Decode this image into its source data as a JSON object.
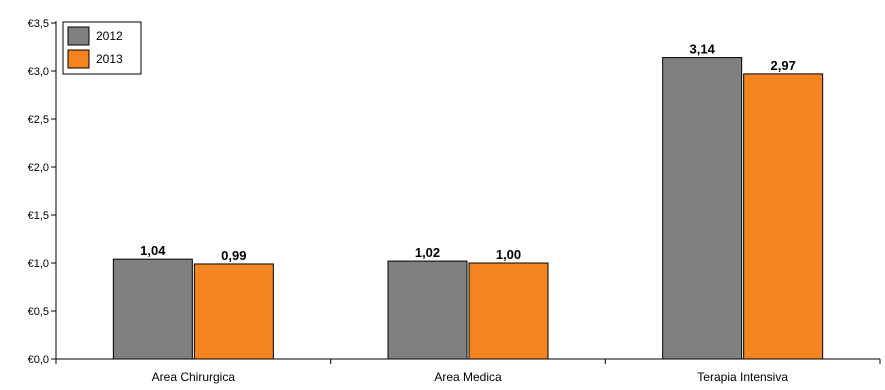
{
  "chart_data": {
    "type": "bar",
    "categories": [
      "Area Chirurgica",
      "Area Medica",
      "Terapia Intensiva"
    ],
    "series": [
      {
        "name": "2012",
        "values": [
          1.04,
          1.02,
          3.14
        ],
        "value_labels": [
          "1,04",
          "1,02",
          "3,14"
        ],
        "color": "#808080"
      },
      {
        "name": "2013",
        "values": [
          0.99,
          1.0,
          2.97
        ],
        "value_labels": [
          "0,99",
          "1,00",
          "2,97"
        ],
        "color": "#f4841f"
      }
    ],
    "ylim": [
      0,
      3.5
    ],
    "yticks": [
      0,
      0.5,
      1.0,
      1.5,
      2.0,
      2.5,
      3.0,
      3.5
    ],
    "ytick_labels": [
      "€0,0",
      "€0,5",
      "€1,0",
      "€1,5",
      "€2,0",
      "€2,5",
      "€3,0",
      "€3,5"
    ],
    "xlabel": "",
    "ylabel": "",
    "title": "",
    "legend_position": "top-left",
    "grid": false
  }
}
